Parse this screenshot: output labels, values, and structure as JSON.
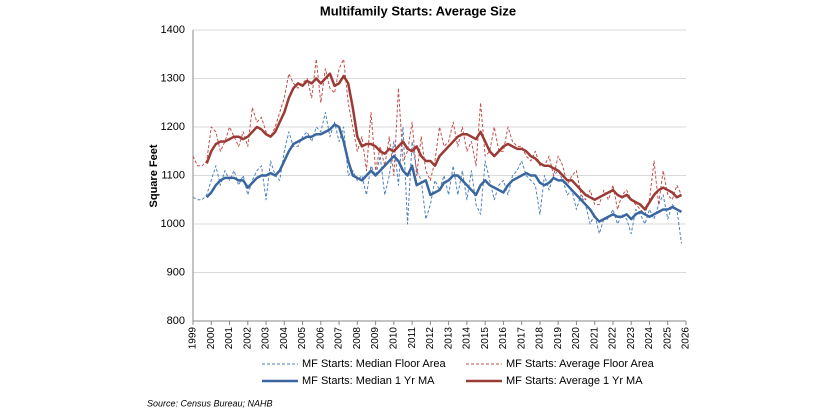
{
  "chart_data": {
    "type": "line",
    "title": "Multifamily Starts: Average Size",
    "y_label": "Square Feet",
    "source": "Source: Census Bureau; NAHB",
    "x": [
      1999,
      1999.25,
      1999.5,
      1999.75,
      2000,
      2000.25,
      2000.5,
      2000.75,
      2001,
      2001.25,
      2001.5,
      2001.75,
      2002,
      2002.25,
      2002.5,
      2002.75,
      2003,
      2003.25,
      2003.5,
      2003.75,
      2004,
      2004.25,
      2004.5,
      2004.75,
      2005,
      2005.25,
      2005.5,
      2005.75,
      2006,
      2006.25,
      2006.5,
      2006.75,
      2007,
      2007.25,
      2007.5,
      2007.75,
      2008,
      2008.25,
      2008.5,
      2008.75,
      2009,
      2009.25,
      2009.5,
      2009.75,
      2010,
      2010.25,
      2010.5,
      2010.75,
      2011,
      2011.25,
      2011.5,
      2011.75,
      2012,
      2012.25,
      2012.5,
      2012.75,
      2013,
      2013.25,
      2013.5,
      2013.75,
      2014,
      2014.25,
      2014.5,
      2014.75,
      2015,
      2015.25,
      2015.5,
      2015.75,
      2016,
      2016.25,
      2016.5,
      2016.75,
      2017,
      2017.25,
      2017.5,
      2017.75,
      2018,
      2018.25,
      2018.5,
      2018.75,
      2019,
      2019.25,
      2019.5,
      2019.75,
      2020,
      2020.25,
      2020.5,
      2020.75,
      2021,
      2021.25,
      2021.5,
      2021.75,
      2022,
      2022.25,
      2022.5,
      2022.75,
      2023,
      2023.25,
      2023.5,
      2023.75,
      2024,
      2024.25,
      2024.5,
      2024.75,
      2025,
      2025.25,
      2025.5,
      2025.75
    ],
    "xlim": [
      1999,
      2026
    ],
    "xticks": [
      1999,
      2000,
      2001,
      2002,
      2003,
      2004,
      2005,
      2006,
      2007,
      2008,
      2009,
      2010,
      2011,
      2012,
      2013,
      2014,
      2015,
      2016,
      2017,
      2018,
      2019,
      2020,
      2021,
      2022,
      2023,
      2024,
      2025,
      2026
    ],
    "ylim": [
      800,
      1400
    ],
    "yticks": [
      800,
      900,
      1000,
      1100,
      1200,
      1300,
      1400
    ],
    "grid": true,
    "series": [
      {
        "name": "MF Starts: Median Floor Area",
        "color": "#4f81bd",
        "line_style": "dashed",
        "values": [
          1055,
          1050,
          1050,
          1060,
          1090,
          1120,
          1080,
          1110,
          1090,
          1110,
          1080,
          1100,
          1060,
          1090,
          1110,
          1120,
          1050,
          1130,
          1100,
          1090,
          1150,
          1190,
          1160,
          1160,
          1180,
          1190,
          1170,
          1200,
          1190,
          1230,
          1180,
          1210,
          1170,
          1200,
          1100,
          1110,
          1090,
          1100,
          1060,
          1120,
          1100,
          1140,
          1060,
          1100,
          1170,
          1080,
          1200,
          1000,
          1170,
          1110,
          1090,
          1010,
          1040,
          1090,
          1070,
          1100,
          1060,
          1120,
          1060,
          1110,
          1050,
          1110,
          1040,
          1020,
          1130,
          1090,
          1050,
          1080,
          1090,
          1060,
          1100,
          1110,
          1130,
          1100,
          1090,
          1080,
          1020,
          1100,
          1070,
          1100,
          1110,
          1090,
          1060,
          1070,
          1030,
          1060,
          1040,
          1000,
          1020,
          980,
          1010,
          1010,
          1030,
          1000,
          1020,
          1010,
          980,
          1030,
          1020,
          1000,
          1030,
          1010,
          1040,
          1060,
          1010,
          1040,
          1030,
          960
        ]
      },
      {
        "name": "MF Starts: Average Floor Area",
        "color": "#c0504d",
        "line_style": "dashed",
        "values": [
          1140,
          1120,
          1120,
          1130,
          1200,
          1190,
          1150,
          1170,
          1200,
          1180,
          1160,
          1190,
          1160,
          1240,
          1210,
          1220,
          1190,
          1180,
          1200,
          1230,
          1260,
          1310,
          1290,
          1280,
          1290,
          1300,
          1260,
          1340,
          1250,
          1320,
          1280,
          1270,
          1320,
          1340,
          1250,
          1200,
          1150,
          1180,
          1110,
          1230,
          1110,
          1160,
          1120,
          1180,
          1100,
          1280,
          1130,
          1150,
          1210,
          1100,
          1180,
          1110,
          1090,
          1130,
          1200,
          1160,
          1170,
          1210,
          1160,
          1200,
          1150,
          1170,
          1120,
          1250,
          1140,
          1150,
          1200,
          1150,
          1150,
          1200,
          1170,
          1160,
          1160,
          1140,
          1130,
          1150,
          1120,
          1120,
          1140,
          1100,
          1140,
          1120,
          1080,
          1100,
          1110,
          1060,
          1050,
          1070,
          1040,
          1040,
          1070,
          1050,
          1080,
          1030,
          1060,
          1070,
          1050,
          1040,
          1030,
          1020,
          1050,
          1130,
          1040,
          1110,
          1060,
          1050,
          1080,
          1060
        ]
      },
      {
        "name": "MF Starts: Median 1 Yr MA",
        "color": "#3a66a0",
        "line_style": "solid",
        "values": [
          null,
          null,
          null,
          1055,
          1065,
          1080,
          1090,
          1095,
          1095,
          1095,
          1090,
          1090,
          1075,
          1085,
          1095,
          1100,
          1100,
          1105,
          1100,
          1110,
          1130,
          1150,
          1165,
          1170,
          1175,
          1180,
          1180,
          1185,
          1185,
          1190,
          1195,
          1205,
          1200,
          1170,
          1130,
          1100,
          1095,
          1090,
          1100,
          1110,
          1100,
          1110,
          1120,
          1130,
          1140,
          1130,
          1110,
          1100,
          1120,
          1080,
          1085,
          1090,
          1060,
          1065,
          1070,
          1085,
          1090,
          1100,
          1100,
          1090,
          1080,
          1070,
          1060,
          1080,
          1090,
          1080,
          1075,
          1070,
          1065,
          1080,
          1090,
          1095,
          1100,
          1105,
          1100,
          1100,
          1085,
          1080,
          1085,
          1095,
          1090,
          1090,
          1080,
          1070,
          1060,
          1050,
          1040,
          1030,
          1015,
          1005,
          1010,
          1015,
          1020,
          1015,
          1015,
          1020,
          1010,
          1020,
          1025,
          1020,
          1015,
          1020,
          1025,
          1030,
          1030,
          1035,
          1030,
          1025
        ]
      },
      {
        "name": "MF Starts: Average 1 Yr MA",
        "color": "#9b3b36",
        "line_style": "solid",
        "values": [
          null,
          null,
          null,
          1125,
          1150,
          1165,
          1170,
          1170,
          1175,
          1180,
          1180,
          1175,
          1180,
          1190,
          1200,
          1195,
          1185,
          1180,
          1190,
          1210,
          1230,
          1260,
          1280,
          1290,
          1285,
          1295,
          1290,
          1300,
          1290,
          1300,
          1310,
          1285,
          1290,
          1305,
          1290,
          1240,
          1180,
          1160,
          1165,
          1165,
          1160,
          1150,
          1145,
          1155,
          1150,
          1160,
          1170,
          1155,
          1150,
          1160,
          1140,
          1130,
          1130,
          1120,
          1140,
          1150,
          1160,
          1170,
          1180,
          1185,
          1185,
          1180,
          1175,
          1190,
          1170,
          1150,
          1140,
          1150,
          1160,
          1165,
          1160,
          1155,
          1155,
          1150,
          1140,
          1135,
          1125,
          1120,
          1120,
          1115,
          1110,
          1100,
          1090,
          1090,
          1080,
          1070,
          1060,
          1055,
          1050,
          1055,
          1060,
          1065,
          1070,
          1060,
          1055,
          1060,
          1050,
          1045,
          1040,
          1030,
          1045,
          1060,
          1070,
          1075,
          1070,
          1065,
          1055,
          1060
        ]
      }
    ]
  }
}
